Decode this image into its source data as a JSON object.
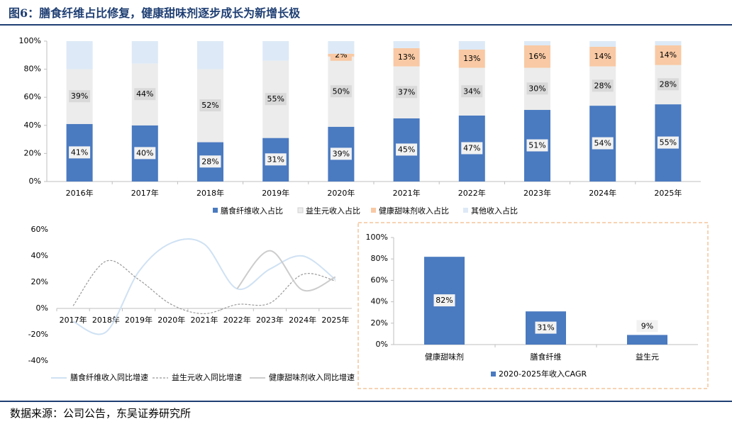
{
  "figure": {
    "title": "图6：膳食纤维占比修复，健康甜味剂逐步成长为新增长极",
    "source": "数据来源：公司公告，东吴证券研究所"
  },
  "colors": {
    "accent": "#1f3f73",
    "fiber": "#4a7ac0",
    "probiotic": "#ececec",
    "sweetener": "#f8c9a4",
    "other": "#dde9f6",
    "line_fiber": "#cfe1f3",
    "line_probiotic": "#999999",
    "line_sweetener": "#cccccc",
    "cagr_bar": "#4a7ac0",
    "panel_border": "#f4c59c"
  },
  "chart_data": [
    {
      "type": "bar",
      "stacked": true,
      "categories": [
        "2016年",
        "2017年",
        "2018年",
        "2019年",
        "2020年",
        "2021年",
        "2022年",
        "2023年",
        "2024年",
        "2025年"
      ],
      "series": [
        {
          "name": "膳食纤维收入占比",
          "values": [
            41,
            40,
            28,
            31,
            39,
            45,
            47,
            51,
            54,
            55
          ],
          "labels": [
            "41%",
            "40%",
            "28%",
            "31%",
            "39%",
            "45%",
            "47%",
            "51%",
            "54%",
            "55%"
          ]
        },
        {
          "name": "益生元收入占比",
          "values": [
            39,
            44,
            52,
            55,
            50,
            37,
            34,
            30,
            28,
            28
          ],
          "labels": [
            "39%",
            "44%",
            "52%",
            "55%",
            "50%",
            "37%",
            "34%",
            "30%",
            "28%",
            "28%"
          ]
        },
        {
          "name": "健康甜味剂收入占比",
          "values": [
            0,
            0,
            0,
            0,
            2,
            13,
            13,
            16,
            14,
            14
          ],
          "labels": [
            "",
            "",
            "",
            "",
            "2%",
            "13%",
            "13%",
            "16%",
            "14%",
            "14%"
          ]
        },
        {
          "name": "其他收入占比",
          "values": [
            20,
            16,
            20,
            14,
            9,
            5,
            6,
            3,
            4,
            3
          ],
          "labels": [
            "",
            "",
            "",
            "",
            "",
            "",
            "",
            "",
            "",
            ""
          ]
        }
      ],
      "ylim": [
        0,
        100
      ],
      "yticks": [
        "0%",
        "20%",
        "40%",
        "60%",
        "80%",
        "100%"
      ],
      "legend_position": "bottom"
    },
    {
      "type": "line",
      "categories": [
        "2017年",
        "2018年",
        "2019年",
        "2020年",
        "2021年",
        "2022年",
        "2023年",
        "2024年",
        "2025年"
      ],
      "series": [
        {
          "name": "膳食纤维收入同比增速",
          "values": [
            -10,
            -18,
            28,
            50,
            49,
            15,
            30,
            40,
            22
          ]
        },
        {
          "name": "益生元收入同比增速",
          "values": [
            2,
            36,
            22,
            3,
            -4,
            3,
            4,
            26,
            21
          ]
        },
        {
          "name": "健康甜味剂收入同比增速",
          "values": [
            null,
            null,
            null,
            null,
            null,
            15,
            44,
            14,
            24
          ]
        }
      ],
      "ylim": [
        -40,
        60
      ],
      "yticks": [
        "-40%",
        "-20%",
        "0%",
        "20%",
        "40%",
        "60%"
      ],
      "legend_position": "bottom"
    },
    {
      "type": "bar",
      "categories": [
        "健康甜味剂",
        "膳食纤维",
        "益生元"
      ],
      "series": [
        {
          "name": "2020-2025年收入CAGR",
          "values": [
            82,
            31,
            9
          ],
          "labels": [
            "82%",
            "31%",
            "9%"
          ]
        }
      ],
      "ylim": [
        0,
        100
      ],
      "yticks": [
        "0%",
        "20%",
        "40%",
        "60%",
        "80%",
        "100%"
      ],
      "legend_position": "bottom"
    }
  ]
}
